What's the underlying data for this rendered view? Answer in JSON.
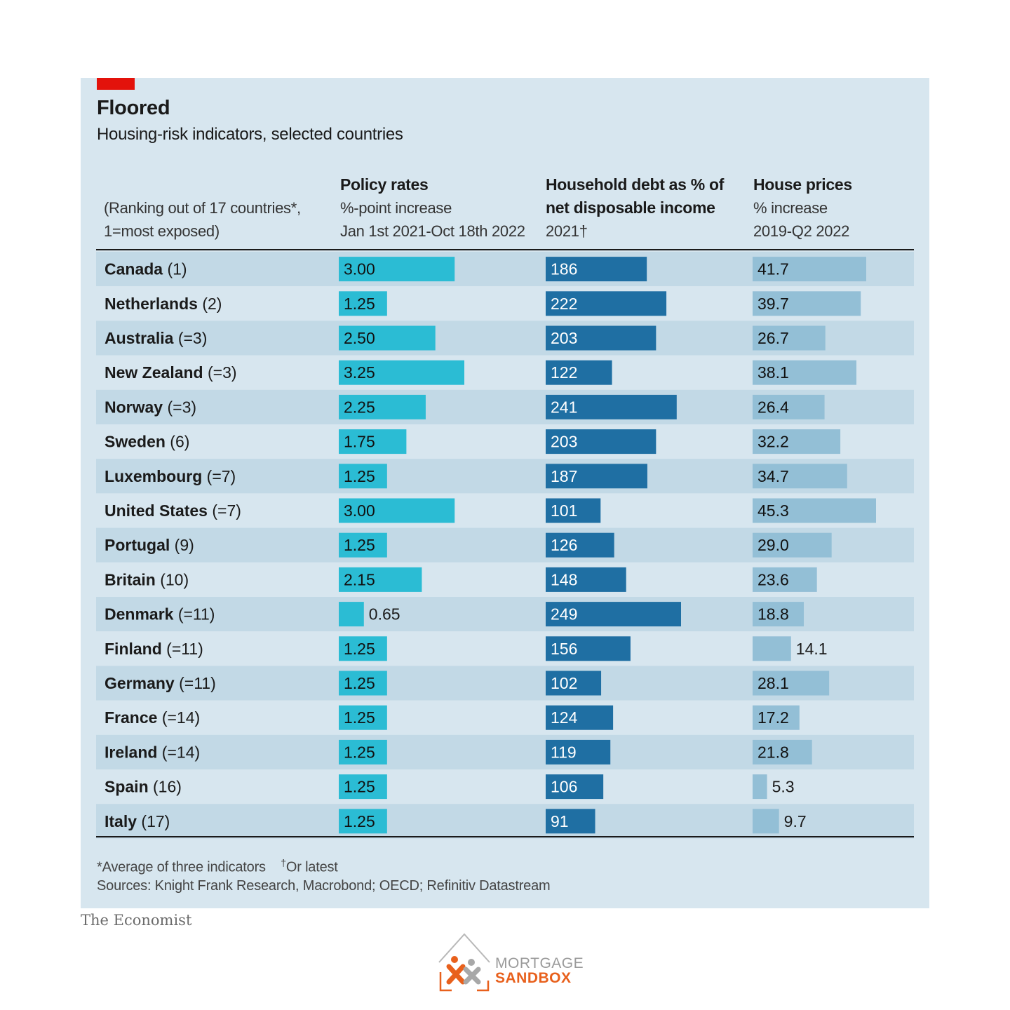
{
  "chart_data": {
    "type": "table",
    "title": "Floored",
    "subtitle": "Housing-risk indicators, selected countries",
    "ranking_note": [
      "(Ranking out of 17 countries*,",
      "1=most exposed)"
    ],
    "columns": [
      {
        "key": "policy",
        "heading": "Policy rates",
        "sub": [
          "%-point increase",
          "Jan 1st 2021-Oct 18th 2022"
        ],
        "color": "#2bbcd4",
        "max": 3.25
      },
      {
        "key": "debt",
        "heading": "Household debt as % of",
        "heading2": "net disposable income",
        "sub": [
          "2021†"
        ],
        "color": "#1f6fa3",
        "max": 249
      },
      {
        "key": "prices",
        "heading": "House prices",
        "sub": [
          "% increase",
          "2019-Q2 2022"
        ],
        "color": "#93bfd6",
        "max": 45.3
      }
    ],
    "rows": [
      {
        "country": "Canada",
        "rank": "(1)",
        "policy": "3.00",
        "debt": "186",
        "prices": "41.7"
      },
      {
        "country": "Netherlands",
        "rank": "(2)",
        "policy": "1.25",
        "debt": "222",
        "prices": "39.7"
      },
      {
        "country": "Australia",
        "rank": "(=3)",
        "policy": "2.50",
        "debt": "203",
        "prices": "26.7"
      },
      {
        "country": "New Zealand",
        "rank": "(=3)",
        "policy": "3.25",
        "debt": "122",
        "prices": "38.1"
      },
      {
        "country": "Norway",
        "rank": "(=3)",
        "policy": "2.25",
        "debt": "241",
        "prices": "26.4"
      },
      {
        "country": "Sweden",
        "rank": "(6)",
        "policy": "1.75",
        "debt": "203",
        "prices": "32.2"
      },
      {
        "country": "Luxembourg",
        "rank": "(=7)",
        "policy": "1.25",
        "debt": "187",
        "prices": "34.7"
      },
      {
        "country": "United States",
        "rank": "(=7)",
        "policy": "3.00",
        "debt": "101",
        "prices": "45.3"
      },
      {
        "country": "Portugal",
        "rank": "(9)",
        "policy": "1.25",
        "debt": "126",
        "prices": "29.0"
      },
      {
        "country": "Britain",
        "rank": "(10)",
        "policy": "2.15",
        "debt": "148",
        "prices": "23.6"
      },
      {
        "country": "Denmark",
        "rank": "(=11)",
        "policy": "0.65",
        "debt": "249",
        "prices": "18.8"
      },
      {
        "country": "Finland",
        "rank": "(=11)",
        "policy": "1.25",
        "debt": "156",
        "prices": "14.1"
      },
      {
        "country": "Germany",
        "rank": "(=11)",
        "policy": "1.25",
        "debt": "102",
        "prices": "28.1"
      },
      {
        "country": "France",
        "rank": "(=14)",
        "policy": "1.25",
        "debt": "124",
        "prices": "17.2"
      },
      {
        "country": "Ireland",
        "rank": "(=14)",
        "policy": "1.25",
        "debt": "119",
        "prices": "21.8"
      },
      {
        "country": "Spain",
        "rank": "(16)",
        "policy": "1.25",
        "debt": "106",
        "prices": "5.3"
      },
      {
        "country": "Italy",
        "rank": "(17)",
        "policy": "1.25",
        "debt": "91",
        "prices": "9.7"
      }
    ],
    "footnote_star": "*Average of three indicators",
    "footnote_dagger_mark": "†",
    "footnote_dagger": "Or latest",
    "sources": "Sources: Knight Frank Research, Macrobond; OECD; Refinitiv Datastream"
  },
  "brand": "The Economist",
  "logo": {
    "line1": "MORTGAGE",
    "line2": "SANDBOX"
  }
}
